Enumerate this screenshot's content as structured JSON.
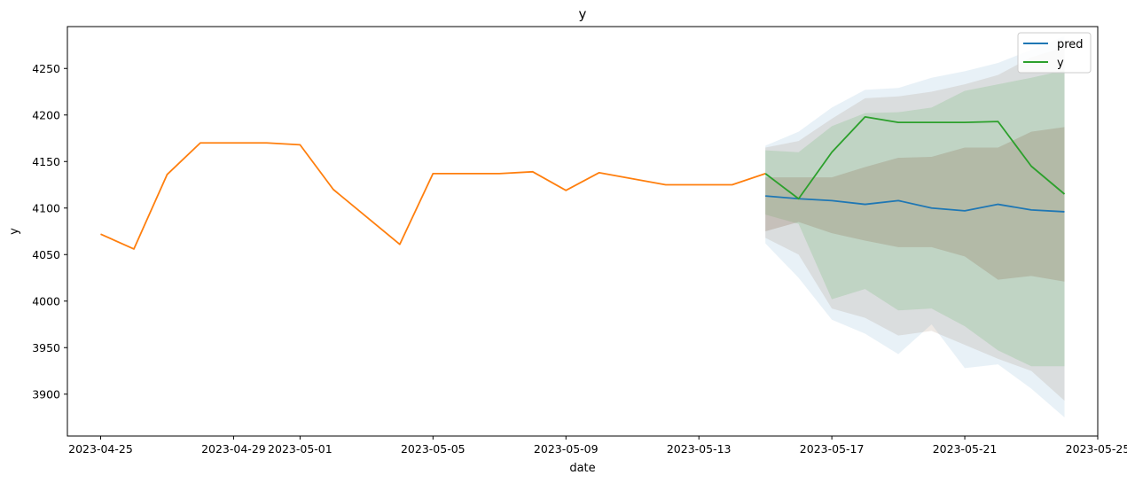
{
  "chart_data": {
    "type": "line",
    "title": "y",
    "xlabel": "date",
    "ylabel": "y",
    "xlim": [
      "2023-04-24",
      "2023-05-25"
    ],
    "ylim": [
      3855,
      4295
    ],
    "x_ticks": [
      "2023-04-25",
      "2023-04-29",
      "2023-05-01",
      "2023-05-05",
      "2023-05-09",
      "2023-05-13",
      "2023-05-17",
      "2023-05-21",
      "2023-05-25"
    ],
    "y_ticks": [
      3900,
      3950,
      4000,
      4050,
      4100,
      4150,
      4200,
      4250
    ],
    "grid": false,
    "legend_position": "top-right",
    "legend": [
      "pred",
      "y"
    ],
    "colors": {
      "history": "#ff7f0e",
      "pred": "#1f77b4",
      "y": "#2ca02c",
      "band_outer_blue": "#1f77b4",
      "band_brown": "#8c6d4f",
      "band_green": "#2ca02c"
    },
    "series": [
      {
        "dates": [
          "2023-04-25",
          "2023-04-26",
          "2023-04-27",
          "2023-04-28",
          "2023-04-30",
          "2023-05-01",
          "2023-05-02",
          "2023-05-04",
          "2023-05-05",
          "2023-05-07",
          "2023-05-08",
          "2023-05-09",
          "2023-05-10",
          "2023-05-12",
          "2023-05-14",
          "2023-05-15"
        ],
        "values": [
          4072,
          4056,
          4136,
          4170,
          4170,
          4168,
          4120,
          4061,
          4137,
          4137,
          4139,
          4119,
          4138,
          4125,
          4125,
          4137
        ]
      },
      {
        "name": "pred",
        "dates": [
          "2023-05-15",
          "2023-05-16",
          "2023-05-17",
          "2023-05-18",
          "2023-05-19",
          "2023-05-20",
          "2023-05-21",
          "2023-05-22",
          "2023-05-23",
          "2023-05-24"
        ],
        "values": [
          4113,
          4110,
          4108,
          4104,
          4108,
          4100,
          4097,
          4104,
          4098,
          4096
        ]
      },
      {
        "name": "y",
        "dates": [
          "2023-05-15",
          "2023-05-16",
          "2023-05-17",
          "2023-05-18",
          "2023-05-19",
          "2023-05-20",
          "2023-05-21",
          "2023-05-22",
          "2023-05-23",
          "2023-05-24"
        ],
        "values": [
          4137,
          4110,
          4160,
          4198,
          4192,
          4192,
          4192,
          4193,
          4145,
          4115
        ]
      }
    ],
    "bands": [
      {
        "color_key": "band_outer_blue",
        "opacity": 0.1,
        "dates": [
          "2023-05-15",
          "2023-05-16",
          "2023-05-17",
          "2023-05-18",
          "2023-05-19",
          "2023-05-20",
          "2023-05-21",
          "2023-05-22",
          "2023-05-23",
          "2023-05-24"
        ],
        "upper": [
          4167,
          4182,
          4208,
          4227,
          4229,
          4240,
          4247,
          4256,
          4270,
          4285
        ],
        "lower": [
          4062,
          4025,
          3980,
          3965,
          3943,
          3975,
          3928,
          3932,
          3906,
          3875
        ]
      },
      {
        "color_key": "band_brown",
        "opacity": 0.15,
        "dates": [
          "2023-05-15",
          "2023-05-16",
          "2023-05-17",
          "2023-05-18",
          "2023-05-19",
          "2023-05-20",
          "2023-05-21",
          "2023-05-22",
          "2023-05-23",
          "2023-05-24"
        ],
        "upper": [
          4165,
          4172,
          4196,
          4218,
          4220,
          4225,
          4233,
          4243,
          4262,
          4273
        ],
        "lower": [
          4068,
          4050,
          3992,
          3982,
          3963,
          3968,
          3953,
          3938,
          3925,
          3893
        ]
      },
      {
        "color_key": "band_green",
        "opacity": 0.15,
        "dates": [
          "2023-05-15",
          "2023-05-16",
          "2023-05-17",
          "2023-05-18",
          "2023-05-19",
          "2023-05-20",
          "2023-05-21",
          "2023-05-22",
          "2023-05-23",
          "2023-05-24"
        ],
        "upper": [
          4162,
          4160,
          4188,
          4202,
          4203,
          4208,
          4226,
          4233,
          4240,
          4248
        ],
        "lower": [
          4093,
          4083,
          4002,
          4013,
          3990,
          3992,
          3973,
          3947,
          3930,
          3930
        ]
      },
      {
        "color_key": "band_brown",
        "opacity": 0.25,
        "dates": [
          "2023-05-15",
          "2023-05-16",
          "2023-05-17",
          "2023-05-18",
          "2023-05-19",
          "2023-05-20",
          "2023-05-21",
          "2023-05-22",
          "2023-05-23",
          "2023-05-24"
        ],
        "upper": [
          4133,
          4133,
          4133,
          4144,
          4154,
          4155,
          4165,
          4165,
          4182,
          4187
        ],
        "lower": [
          4075,
          4085,
          4073,
          4065,
          4058,
          4058,
          4048,
          4023,
          4027,
          4021
        ]
      }
    ]
  }
}
